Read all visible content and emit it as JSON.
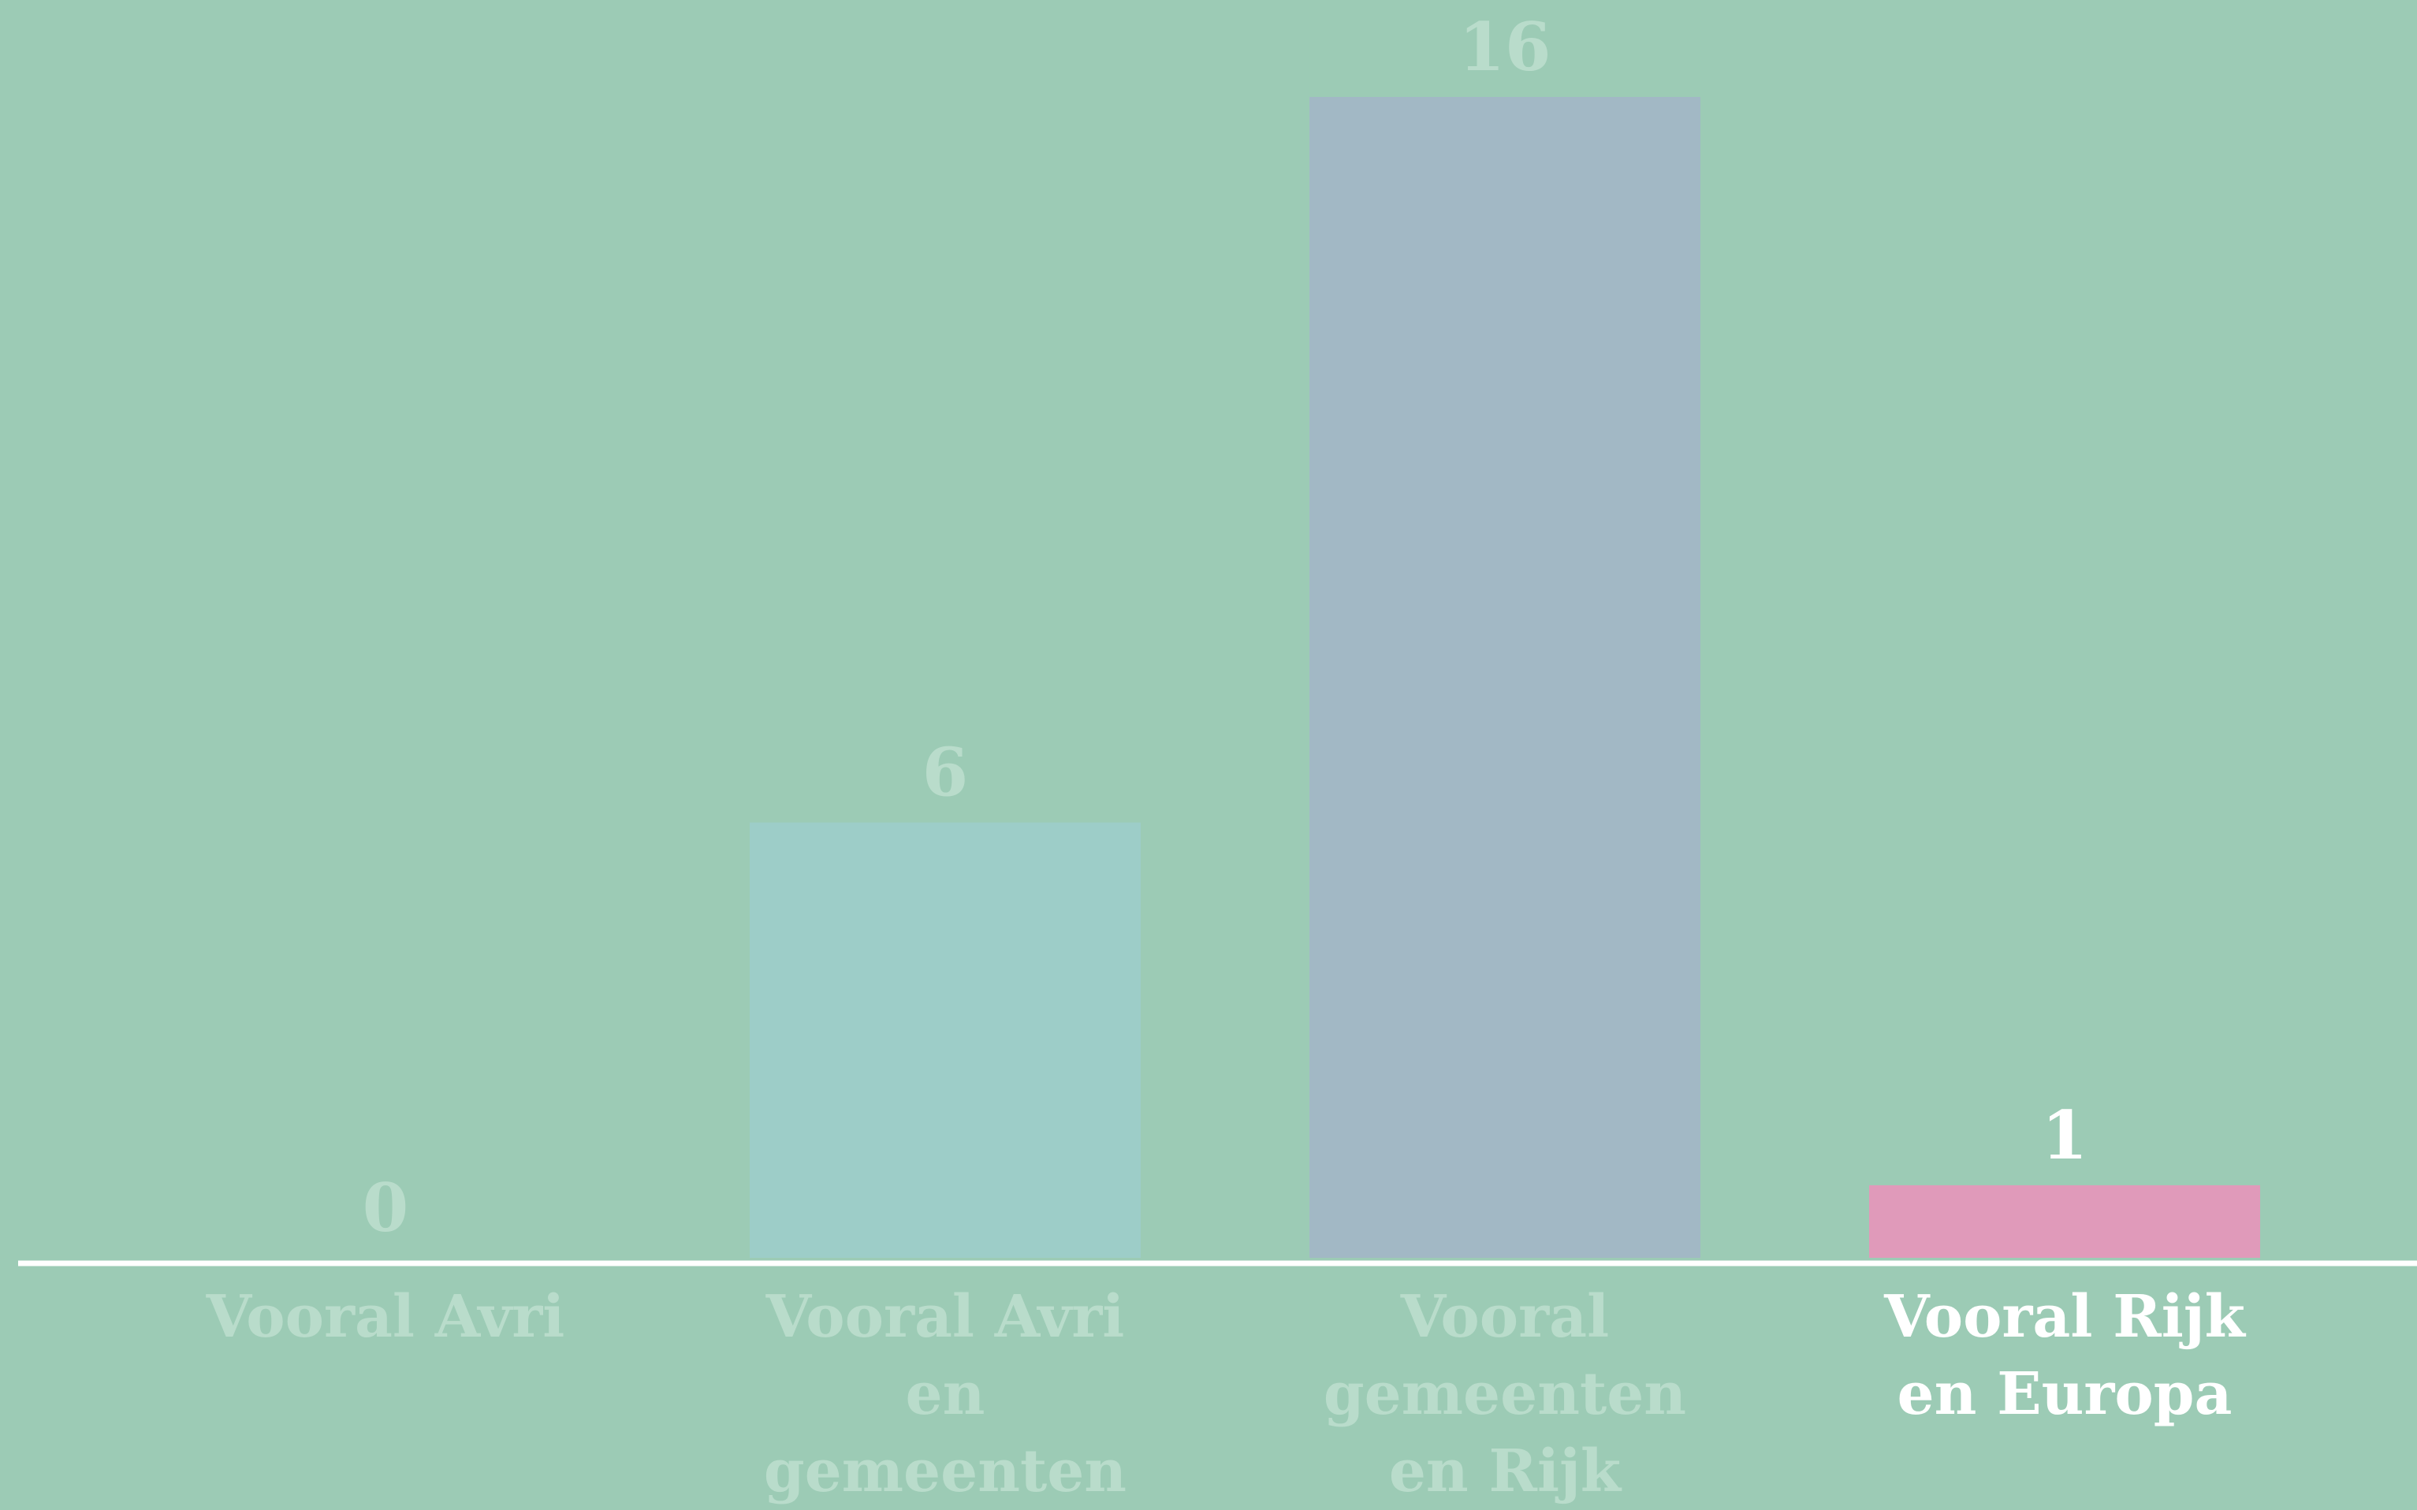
{
  "chart_data": {
    "type": "bar",
    "categories": [
      "Vooral Avri",
      "Vooral Avri en gemeenten",
      "Vooral gemeenten en Rijk",
      "Vooral Rijk en Europa"
    ],
    "values": [
      0,
      6,
      16,
      1
    ],
    "colors": [
      "#a3d2c5",
      "#9dcdc8",
      "#a2b8c5",
      "#e09aba"
    ],
    "label_colors": [
      "#b9dccb",
      "#b9dccb",
      "#b9dccb",
      "#ffffff"
    ]
  }
}
